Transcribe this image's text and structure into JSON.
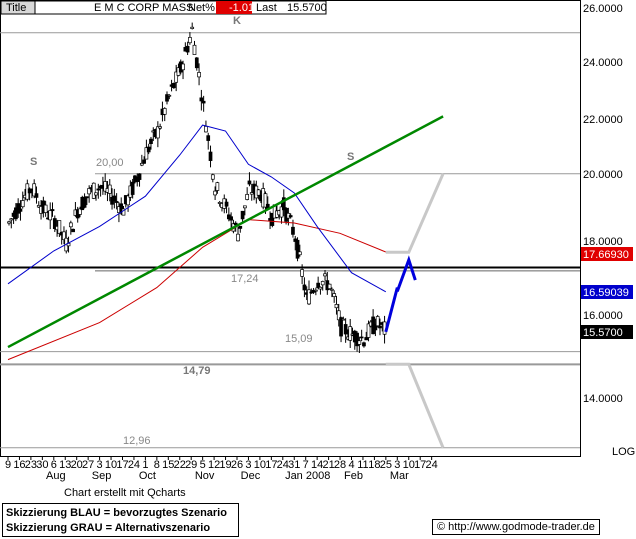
{
  "header": {
    "title_label": "Title",
    "instrument": "E M C CORP MASS",
    "net_label": "Net%",
    "net_value": "-1.01",
    "last_label": "Last",
    "last_value": "15.5700"
  },
  "colors": {
    "blue_ma": "#0000cc",
    "red_ma": "#cc0000",
    "trendline": "#008800",
    "blue_scenario": "#0000dd",
    "grey_scenario": "#c8c8c8",
    "neg_badge": "#e00000"
  },
  "chart_data": {
    "type": "candlestick",
    "title": "E M C CORP MASS",
    "y_scale": "log",
    "ylim": [
      12.6,
      26.4
    ],
    "y_ticks": [
      "26.0000",
      "24.0000",
      "22.0000",
      "20.0000",
      "18.0000",
      "16.0000",
      "14.0000"
    ],
    "y_axis_label": "LOG",
    "x_tick_labels": [
      "9",
      "16",
      "23",
      "30",
      "6",
      "13",
      "20",
      "27",
      "3",
      "10",
      "17",
      "24",
      "1",
      "8",
      "15",
      "22",
      "29",
      "5",
      "12",
      "19",
      "26",
      "3",
      "10",
      "17",
      "24",
      "31",
      "7",
      "14",
      "21",
      "28",
      "4",
      "11",
      "18",
      "25",
      "3",
      "10",
      "17",
      "24"
    ],
    "month_labels": [
      "Aug",
      "Sep",
      "Oct",
      "Nov",
      "Dec",
      "Jan 2008",
      "Feb",
      "Mar"
    ],
    "annotations": [
      "K",
      "S",
      "S",
      "20,00",
      "17,24",
      "15,09",
      "14,79",
      "12,96"
    ],
    "price_tags": [
      {
        "label": "17.66930",
        "series": "MA 200"
      },
      {
        "label": "16.59039",
        "series": "MA 50"
      },
      {
        "label": "15.5700",
        "series": "Last"
      }
    ],
    "horizontal_levels": [
      25.0,
      20.0,
      17.24,
      17.15,
      15.09,
      14.79,
      12.96
    ],
    "trendline": {
      "from": {
        "date": "2007-07-09",
        "price": 15.2
      },
      "to": {
        "date": "2008-03-31",
        "price": 21.9
      }
    },
    "price_path": [
      {
        "date": "2007-07-09",
        "close": 18.5
      },
      {
        "date": "2007-07-16",
        "close": 19.1
      },
      {
        "date": "2007-07-23",
        "close": 19.6
      },
      {
        "date": "2007-07-30",
        "close": 18.9
      },
      {
        "date": "2007-08-06",
        "close": 18.6
      },
      {
        "date": "2007-08-13",
        "close": 17.9
      },
      {
        "date": "2007-08-20",
        "close": 18.9
      },
      {
        "date": "2007-08-27",
        "close": 19.4
      },
      {
        "date": "2007-09-03",
        "close": 19.6
      },
      {
        "date": "2007-09-10",
        "close": 19.3
      },
      {
        "date": "2007-09-17",
        "close": 18.9
      },
      {
        "date": "2007-09-24",
        "close": 19.7
      },
      {
        "date": "2007-10-01",
        "close": 20.7
      },
      {
        "date": "2007-10-08",
        "close": 21.4
      },
      {
        "date": "2007-10-15",
        "close": 22.6
      },
      {
        "date": "2007-10-22",
        "close": 23.6
      },
      {
        "date": "2007-10-29",
        "close": 25.1
      },
      {
        "date": "2007-11-05",
        "close": 22.2
      },
      {
        "date": "2007-11-12",
        "close": 19.6
      },
      {
        "date": "2007-11-19",
        "close": 18.9
      },
      {
        "date": "2007-11-26",
        "close": 18.2
      },
      {
        "date": "2007-12-03",
        "close": 19.5
      },
      {
        "date": "2007-12-10",
        "close": 19.4
      },
      {
        "date": "2007-12-17",
        "close": 18.7
      },
      {
        "date": "2007-12-24",
        "close": 19.0
      },
      {
        "date": "2007-12-31",
        "close": 18.1
      },
      {
        "date": "2008-01-07",
        "close": 16.4
      },
      {
        "date": "2008-01-14",
        "close": 16.9
      },
      {
        "date": "2008-01-21",
        "close": 16.8
      },
      {
        "date": "2008-01-28",
        "close": 15.7
      },
      {
        "date": "2008-02-04",
        "close": 15.5
      },
      {
        "date": "2008-02-11",
        "close": 15.4
      },
      {
        "date": "2008-02-18",
        "close": 15.8
      },
      {
        "date": "2008-02-25",
        "close": 15.57
      }
    ],
    "ma50": [
      {
        "date": "2007-07-09",
        "close": 16.8
      },
      {
        "date": "2007-08-06",
        "close": 17.7
      },
      {
        "date": "2007-09-03",
        "close": 18.4
      },
      {
        "date": "2007-10-01",
        "close": 19.3
      },
      {
        "date": "2007-10-22",
        "close": 20.6
      },
      {
        "date": "2007-11-05",
        "close": 21.6
      },
      {
        "date": "2007-11-19",
        "close": 21.4
      },
      {
        "date": "2007-12-03",
        "close": 20.3
      },
      {
        "date": "2007-12-17",
        "close": 19.9
      },
      {
        "date": "2007-12-31",
        "close": 19.4
      },
      {
        "date": "2008-01-14",
        "close": 18.4
      },
      {
        "date": "2008-02-04",
        "close": 17.1
      },
      {
        "date": "2008-02-25",
        "close": 16.59
      }
    ],
    "ma200": [
      {
        "date": "2007-07-09",
        "close": 14.9
      },
      {
        "date": "2007-09-03",
        "close": 15.8
      },
      {
        "date": "2007-10-08",
        "close": 16.7
      },
      {
        "date": "2007-11-05",
        "close": 17.8
      },
      {
        "date": "2007-12-03",
        "close": 18.6
      },
      {
        "date": "2007-12-31",
        "close": 18.5
      },
      {
        "date": "2008-01-28",
        "close": 18.2
      },
      {
        "date": "2008-02-25",
        "close": 17.67
      }
    ],
    "blue_scenario": [
      {
        "date": "2008-02-25",
        "price": 15.57
      },
      {
        "date": "2008-03-03",
        "price": 16.7
      },
      {
        "date": "2008-03-03",
        "price": 16.6
      },
      {
        "date": "2008-03-10",
        "price": 17.45
      },
      {
        "date": "2008-03-14",
        "price": 16.9
      }
    ],
    "grey_scenario_up": [
      {
        "date": "2008-02-25",
        "price": 17.66
      },
      {
        "date": "2008-03-10",
        "price": 17.66
      },
      {
        "date": "2008-03-31",
        "price": 20.0
      }
    ],
    "grey_scenario_down": [
      {
        "date": "2008-02-25",
        "price": 14.79
      },
      {
        "date": "2008-03-10",
        "price": 14.79
      },
      {
        "date": "2008-03-31",
        "price": 12.96
      }
    ]
  },
  "footer": {
    "credit": "Chart erstellt mit Qcharts",
    "legend_blue": "Skizzierung BLAU = bevorzugtes Szenario",
    "legend_grey": "Skizzierung GRAU = Alternativszenario",
    "website": "http://www.godmode-trader.de"
  }
}
